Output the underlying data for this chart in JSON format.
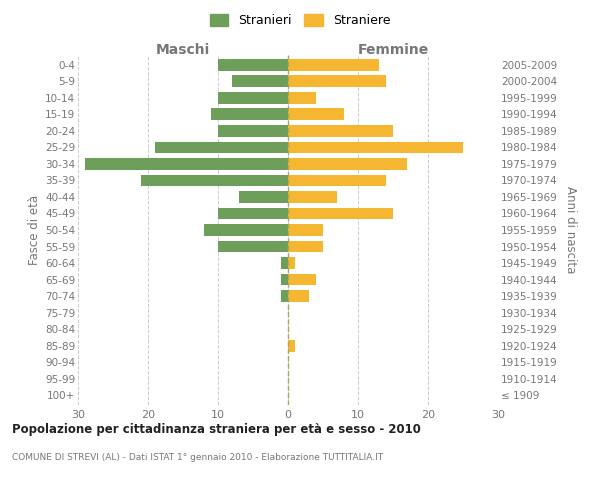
{
  "age_groups": [
    "100+",
    "95-99",
    "90-94",
    "85-89",
    "80-84",
    "75-79",
    "70-74",
    "65-69",
    "60-64",
    "55-59",
    "50-54",
    "45-49",
    "40-44",
    "35-39",
    "30-34",
    "25-29",
    "20-24",
    "15-19",
    "10-14",
    "5-9",
    "0-4"
  ],
  "birth_years": [
    "≤ 1909",
    "1910-1914",
    "1915-1919",
    "1920-1924",
    "1925-1929",
    "1930-1934",
    "1935-1939",
    "1940-1944",
    "1945-1949",
    "1950-1954",
    "1955-1959",
    "1960-1964",
    "1965-1969",
    "1970-1974",
    "1975-1979",
    "1980-1984",
    "1985-1989",
    "1990-1994",
    "1995-1999",
    "2000-2004",
    "2005-2009"
  ],
  "maschi": [
    0,
    0,
    0,
    0,
    0,
    0,
    1,
    1,
    1,
    10,
    12,
    10,
    7,
    21,
    29,
    19,
    10,
    11,
    10,
    8,
    10
  ],
  "femmine": [
    0,
    0,
    0,
    1,
    0,
    0,
    3,
    4,
    1,
    5,
    5,
    15,
    7,
    14,
    17,
    25,
    15,
    8,
    4,
    14,
    13
  ],
  "maschi_color": "#6d9e5a",
  "femmine_color": "#f5b731",
  "title": "Popolazione per cittadinanza straniera per età e sesso - 2010",
  "subtitle": "COMUNE DI STREVI (AL) - Dati ISTAT 1° gennaio 2010 - Elaborazione TUTTITALIA.IT",
  "header_left": "Maschi",
  "header_right": "Femmine",
  "ylabel_left": "Fasce di età",
  "ylabel_right": "Anni di nascita",
  "xlim": 30,
  "xtick_vals": [
    -30,
    -20,
    -10,
    0,
    10,
    20,
    30
  ],
  "xtick_labels": [
    "30",
    "20",
    "10",
    "0",
    "10",
    "20",
    "30"
  ],
  "legend_stranieri": "Stranieri",
  "legend_straniere": "Straniere",
  "background_color": "#ffffff",
  "grid_color": "#cccccc",
  "text_color": "#777777",
  "title_color": "#222222",
  "center_line_color": "#aaa855"
}
